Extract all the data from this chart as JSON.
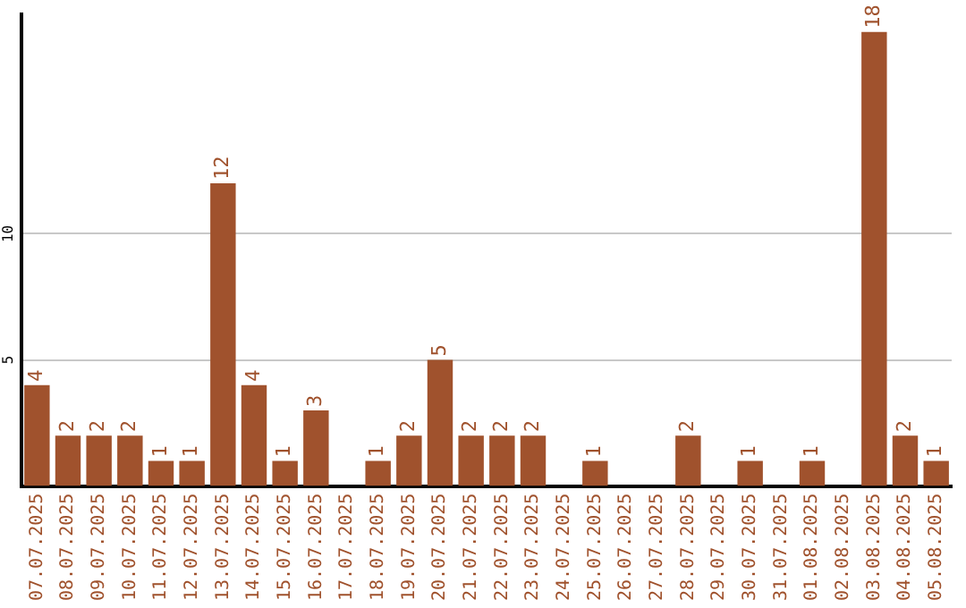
{
  "chart_data": {
    "type": "bar",
    "categories": [
      "07.07.2025",
      "08.07.2025",
      "09.07.2025",
      "10.07.2025",
      "11.07.2025",
      "12.07.2025",
      "13.07.2025",
      "14.07.2025",
      "15.07.2025",
      "16.07.2025",
      "17.07.2025",
      "18.07.2025",
      "19.07.2025",
      "20.07.2025",
      "21.07.2025",
      "22.07.2025",
      "23.07.2025",
      "24.07.2025",
      "25.07.2025",
      "26.07.2025",
      "27.07.2025",
      "28.07.2025",
      "29.07.2025",
      "30.07.2025",
      "31.07.2025",
      "01.08.2025",
      "02.08.2025",
      "03.08.2025",
      "04.08.2025",
      "05.08.2025"
    ],
    "values": [
      4,
      2,
      2,
      2,
      1,
      1,
      12,
      4,
      1,
      3,
      0,
      1,
      2,
      5,
      2,
      2,
      2,
      0,
      1,
      0,
      0,
      2,
      0,
      1,
      0,
      1,
      0,
      18,
      2,
      1
    ],
    "value_labels": [
      "4",
      "2",
      "2",
      "2",
      "1",
      "1",
      "12",
      "4",
      "1",
      "3",
      null,
      "1",
      "2",
      "5",
      "2",
      "2",
      "2",
      null,
      "1",
      null,
      null,
      "2",
      null,
      "1",
      null,
      "1",
      null,
      "18",
      "2",
      "1"
    ],
    "color": "#a0522d",
    "ylim": [
      0,
      18.7
    ],
    "yticks": [
      5,
      10
    ],
    "grid": "y",
    "legend": false
  }
}
